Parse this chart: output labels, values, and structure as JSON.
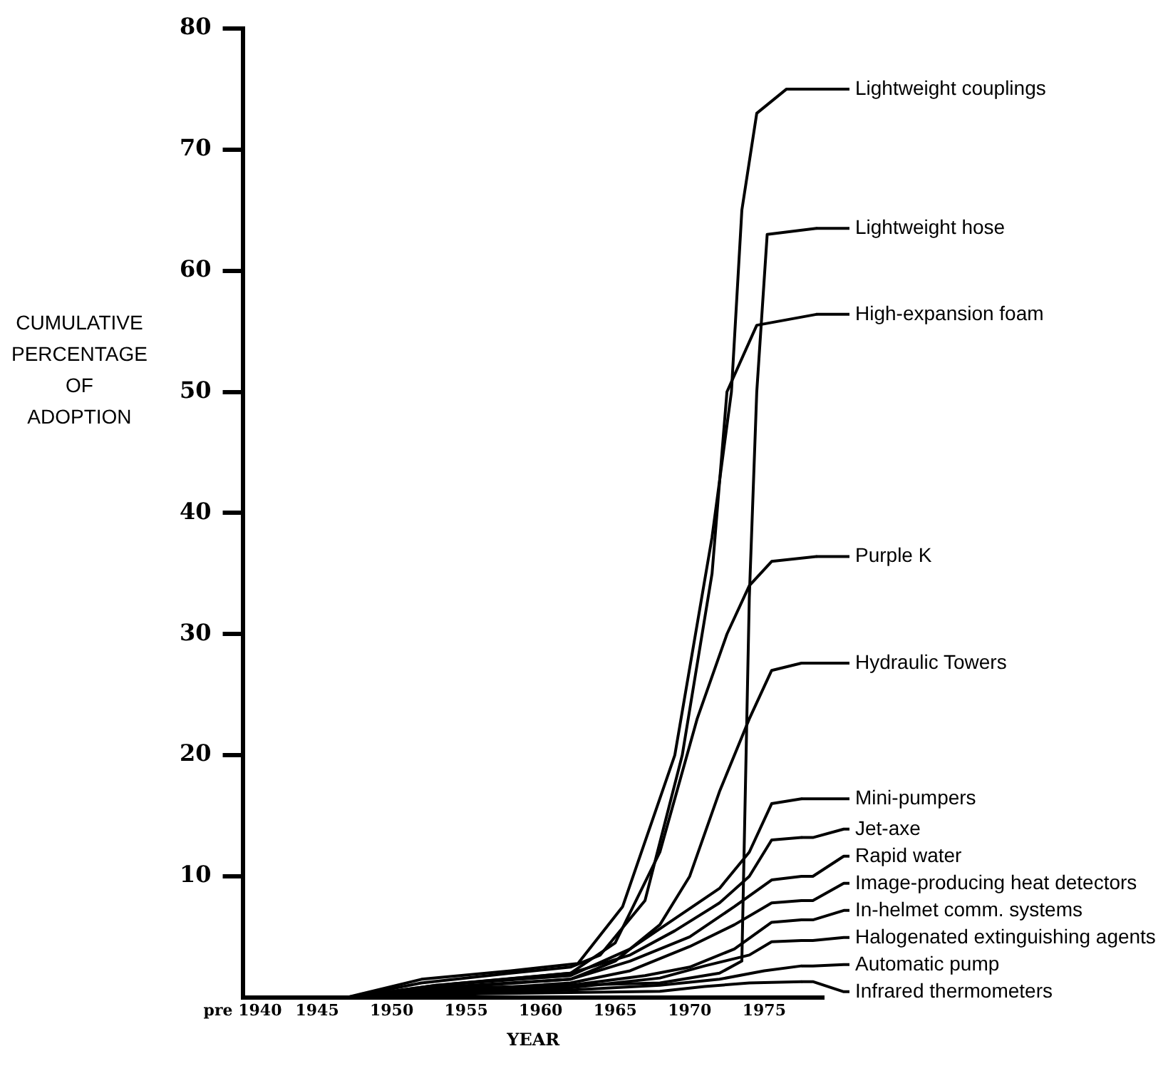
{
  "chart_data": {
    "type": "line",
    "xlabel": "YEAR",
    "ylabel": "CUMULATIVE PERCENTAGE OF ADOPTION",
    "xlim": [
      1940,
      1979
    ],
    "xticks": [
      {
        "value": 1940,
        "label": "pre 1940"
      },
      1945,
      1950,
      1955,
      1960,
      1965,
      1970,
      1975
    ],
    "ylim": [
      0,
      80
    ],
    "yticks": [
      10,
      20,
      30,
      40,
      50,
      60,
      70,
      80
    ],
    "grid": false,
    "legend": "right",
    "marker": "none",
    "line_style": "solid",
    "series": [
      {
        "name": "Lightweight couplings",
        "color": "#000000",
        "x": [
          1940,
          1947,
          1952,
          1958,
          1962.5,
          1965.5,
          1969,
          1971.5,
          1972.8,
          1973.5,
          1974.5,
          1976.5,
          1978.5
        ],
        "values": [
          0,
          0,
          1.5,
          2.2,
          2.8,
          7.5,
          20,
          38,
          50,
          65,
          73,
          75,
          75
        ]
      },
      {
        "name": "Lightweight hose",
        "color": "#000000",
        "x": [
          1940,
          1947,
          1955,
          1962,
          1968,
          1972,
          1973.5,
          1974,
          1974.5,
          1975.2,
          1978.5
        ],
        "values": [
          0,
          0,
          0.8,
          1,
          1.2,
          2,
          3,
          33,
          50,
          63,
          63.5
        ]
      },
      {
        "name": "High-expansion foam",
        "color": "#000000",
        "x": [
          1940,
          1947,
          1952,
          1958,
          1962,
          1964,
          1967,
          1969.5,
          1971.5,
          1972.5,
          1974.5,
          1978.5
        ],
        "values": [
          0,
          0,
          1.2,
          2,
          2.5,
          3.5,
          8,
          20,
          35,
          50,
          55.5,
          56.4
        ]
      },
      {
        "name": "Purple K",
        "color": "#000000",
        "x": [
          1940,
          1947,
          1953,
          1962,
          1965,
          1968,
          1970.5,
          1972.5,
          1974,
          1975.5,
          1978.5
        ],
        "values": [
          0,
          0,
          1,
          2,
          4.5,
          12,
          23,
          30,
          34,
          36,
          36.4
        ]
      },
      {
        "name": "Hydraulic Towers",
        "color": "#000000",
        "x": [
          1940,
          1947,
          1954,
          1962,
          1965,
          1968,
          1970,
          1972,
          1974,
          1975.5,
          1977.5
        ],
        "values": [
          0,
          0,
          0.9,
          1.5,
          3,
          6,
          10,
          17,
          23,
          27,
          27.6
        ]
      },
      {
        "name": "Mini-pumpers",
        "color": "#000000",
        "x": [
          1940,
          1947,
          1953,
          1962,
          1966,
          1969,
          1972,
          1974,
          1975.5,
          1977.5
        ],
        "values": [
          0,
          0,
          1,
          1.8,
          4,
          6.5,
          9,
          12,
          16,
          16.4
        ]
      },
      {
        "name": "Jet-axe",
        "color": "#000000",
        "x": [
          1940,
          1947,
          1954,
          1962,
          1966,
          1969,
          1972,
          1974,
          1975.5,
          1977.5
        ],
        "values": [
          0,
          0,
          1.1,
          2,
          3.5,
          5.5,
          7.8,
          10,
          13,
          13.2
        ]
      },
      {
        "name": "Rapid water",
        "color": "#000000",
        "x": [
          1940,
          1947,
          1955,
          1962,
          1966,
          1970,
          1973,
          1975.5,
          1977.5
        ],
        "values": [
          0,
          0,
          0.9,
          1.5,
          3,
          5,
          7.5,
          9.7,
          10
        ]
      },
      {
        "name": "Image-producing heat detectors",
        "color": "#000000",
        "x": [
          1940,
          1948,
          1956,
          1962,
          1966,
          1970,
          1973,
          1975.5,
          1977.5
        ],
        "values": [
          0,
          0,
          0.7,
          1.2,
          2.2,
          4.2,
          6,
          7.8,
          8
        ]
      },
      {
        "name": "In-helmet comm. systems",
        "color": "#000000",
        "x": [
          1940,
          1948,
          1956,
          1962,
          1967,
          1970,
          1973,
          1975.5,
          1977.5
        ],
        "values": [
          0,
          0,
          0.6,
          1,
          1.8,
          2.5,
          4,
          6.2,
          6.4
        ]
      },
      {
        "name": "Halogenated extinguishing agents",
        "color": "#000000",
        "x": [
          1940,
          1948,
          1956,
          1962,
          1968,
          1971,
          1974,
          1975.5,
          1977.5
        ],
        "values": [
          0,
          0,
          0.5,
          0.8,
          1.6,
          2.6,
          3.5,
          4.6,
          4.7
        ]
      },
      {
        "name": "Automatic pump",
        "color": "#000000",
        "x": [
          1940,
          1948,
          1956,
          1962,
          1968,
          1972,
          1975,
          1977.5
        ],
        "values": [
          0,
          0,
          0.4,
          0.6,
          1,
          1.5,
          2.2,
          2.6
        ]
      },
      {
        "name": "Infrared thermometers",
        "color": "#000000",
        "x": [
          1940,
          1948,
          1956,
          1962,
          1968,
          1971,
          1974,
          1977.5
        ],
        "values": [
          0,
          0,
          0.3,
          0.4,
          0.5,
          0.9,
          1.2,
          1.3
        ]
      }
    ]
  }
}
